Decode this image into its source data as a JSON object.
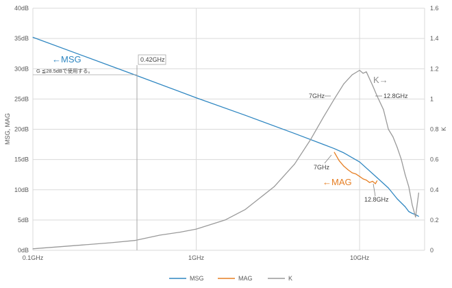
{
  "chart_data": {
    "type": "line",
    "x_scale": "log",
    "xlim": [
      0.1,
      25
    ],
    "x_ticks": [
      "0.1GHz",
      "1GHz",
      "10GHz"
    ],
    "y_left_ticks": [
      "0dB",
      "5dB",
      "10dB",
      "15dB",
      "20dB",
      "25dB",
      "30dB",
      "35dB",
      "40dB"
    ],
    "y_right_ticks": [
      "0",
      "0.2",
      "0.4",
      "0.6",
      "0.8",
      "1",
      "1.2",
      "1.4",
      "1.6"
    ],
    "ylim_left": [
      0,
      40
    ],
    "ylim_right": [
      0,
      1.6
    ],
    "ylabel_left": "MSG, MAG",
    "ylabel_right": "K",
    "grid": true,
    "legend_position": "bottom",
    "series": [
      {
        "name": "MSG",
        "axis": "left",
        "color": "#2E86C1",
        "x": [
          0.1,
          0.2,
          0.42,
          1,
          2,
          4,
          6,
          7,
          8,
          10,
          12.8,
          15,
          17,
          19,
          20,
          21,
          22,
          23
        ],
        "y": [
          35.2,
          32.2,
          29.0,
          25.2,
          22.3,
          19.3,
          17.5,
          16.8,
          16.1,
          14.6,
          12.0,
          10.3,
          8.5,
          7.2,
          6.4,
          6.1,
          5.9,
          5.6
        ]
      },
      {
        "name": "MAG",
        "axis": "left",
        "color": "#E67E22",
        "x": [
          7,
          7.5,
          8,
          8.5,
          9,
          9.5,
          10,
          10.5,
          11,
          11.5,
          12,
          12.5,
          12.8
        ],
        "y": [
          16.2,
          14.8,
          13.9,
          13.3,
          12.8,
          12.6,
          12.2,
          11.8,
          11.6,
          11.2,
          11.4,
          11.0,
          11.5
        ]
      },
      {
        "name": "K",
        "axis": "right",
        "color": "#999999",
        "x": [
          0.1,
          0.2,
          0.3,
          0.42,
          0.6,
          0.8,
          1,
          1.5,
          2,
          3,
          4,
          5,
          6,
          7,
          8,
          9,
          10,
          10.5,
          11,
          12,
          12.8,
          14,
          15,
          16,
          17,
          18,
          19,
          20,
          21,
          22,
          23
        ],
        "y": [
          0.01,
          0.035,
          0.05,
          0.065,
          0.1,
          0.12,
          0.14,
          0.2,
          0.27,
          0.42,
          0.57,
          0.73,
          0.88,
          1.0,
          1.1,
          1.16,
          1.19,
          1.17,
          1.18,
          1.09,
          1.02,
          0.93,
          0.8,
          0.75,
          0.68,
          0.6,
          0.5,
          0.42,
          0.3,
          0.22,
          0.38
        ]
      }
    ],
    "annotations": {
      "msg_arrow": "←MSG",
      "mag_arrow": "←MAG",
      "k_arrow": "K→",
      "marker_042": "0.42GHz",
      "note_gain": "G ≦28.5dBで使用する。",
      "k_7ghz": "7GHz",
      "k_128ghz": "12.8GHz",
      "mag_7ghz": "7GHz",
      "mag_128ghz": "12.8GHz"
    },
    "colors": {
      "msg": "#2E86C1",
      "mag": "#E67E22",
      "k": "#999999",
      "grid": "#D9D9D9",
      "axis_text": "#595959"
    }
  }
}
